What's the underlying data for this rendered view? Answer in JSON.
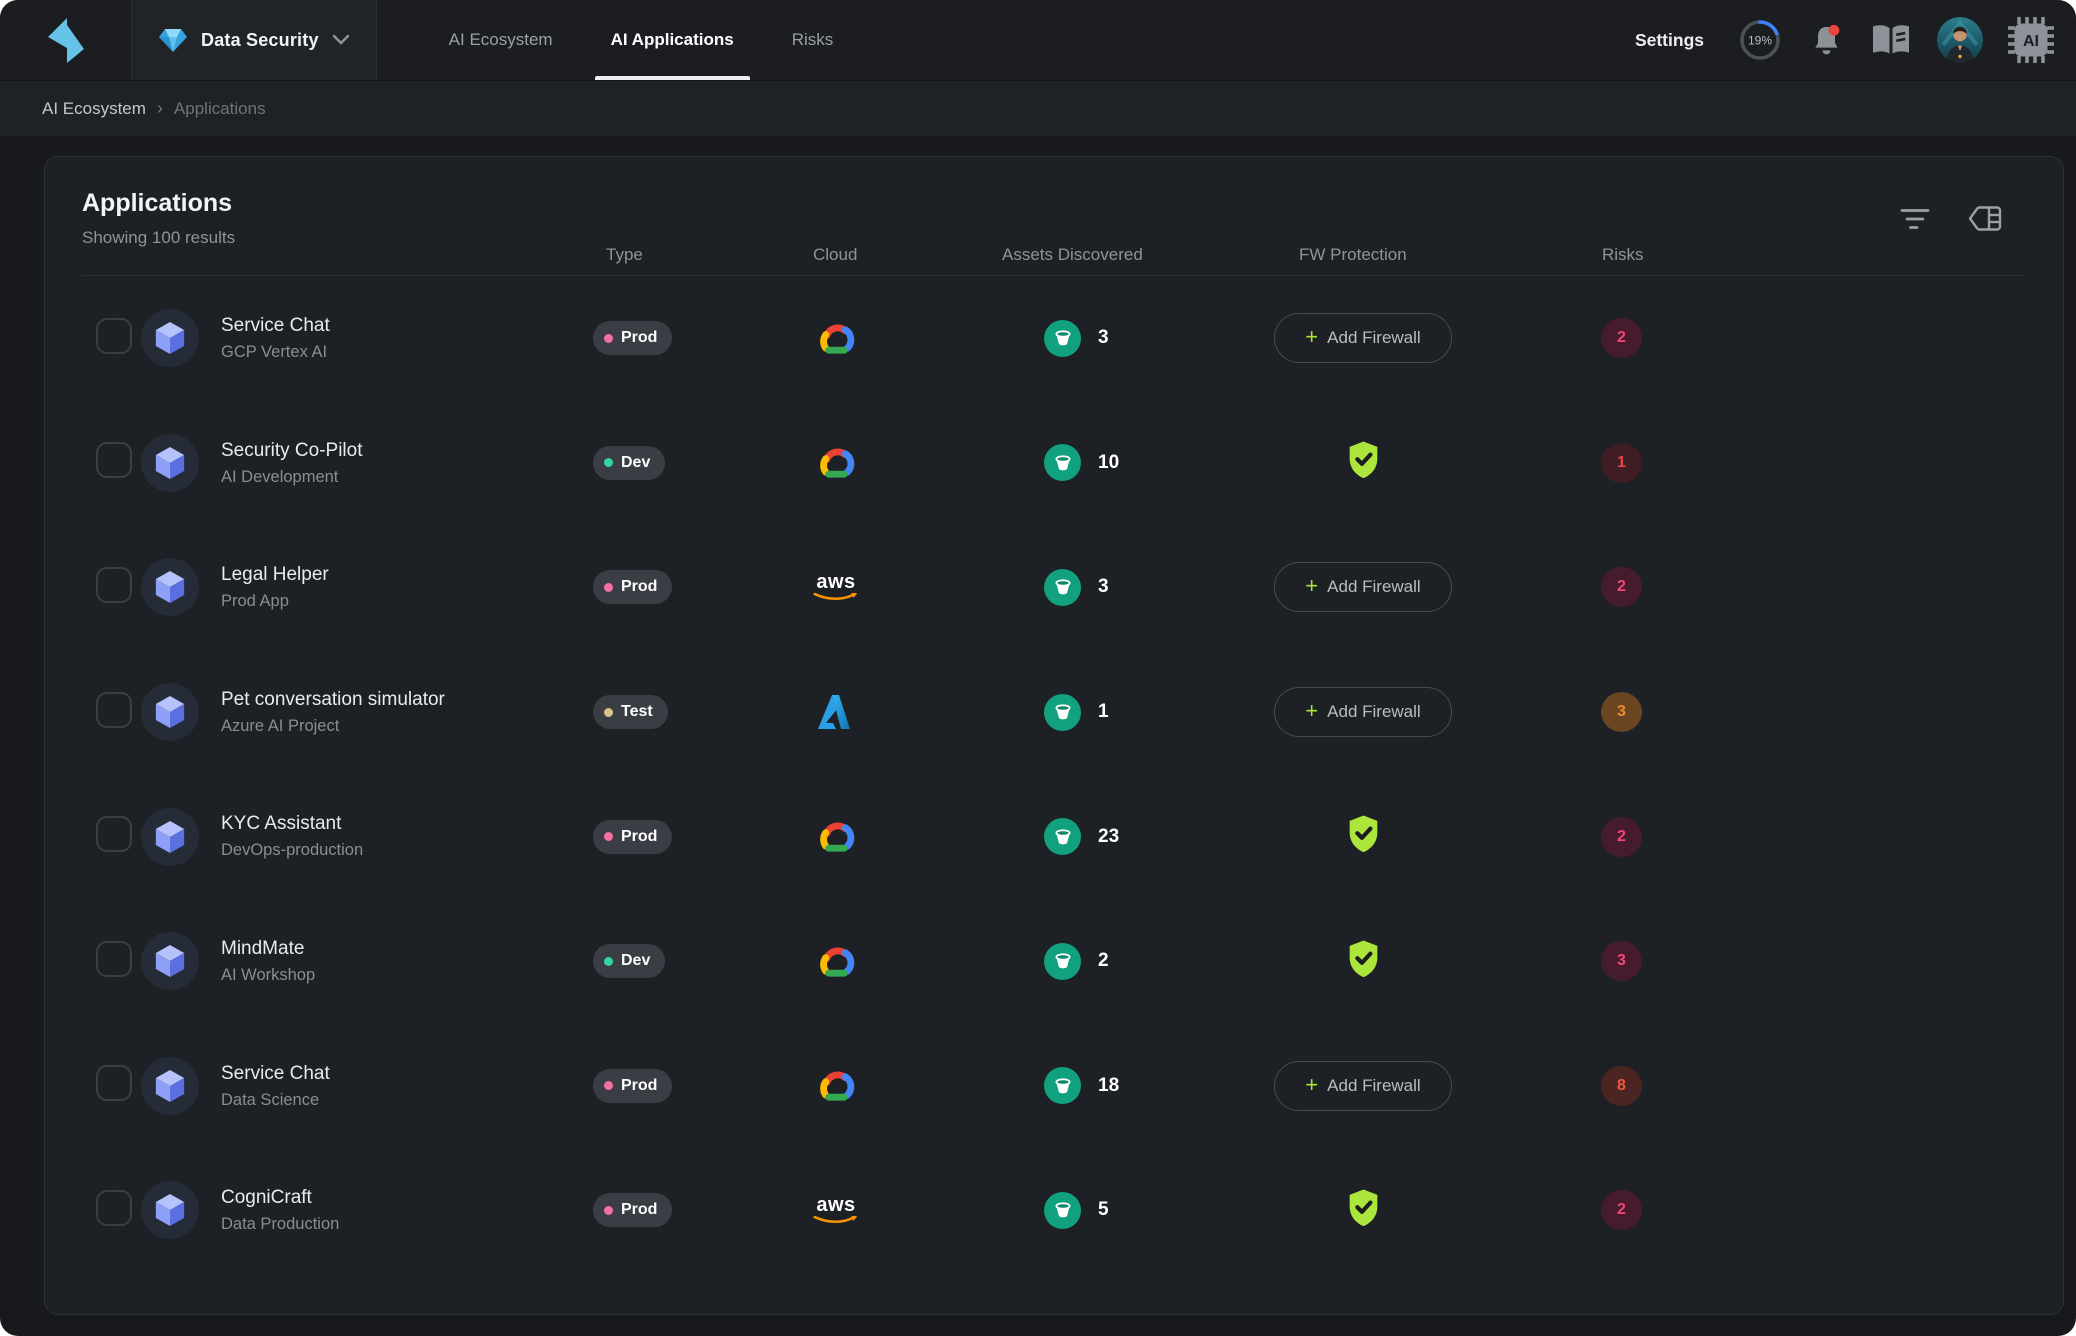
{
  "topbar": {
    "product": "Data Security",
    "tabs": [
      {
        "label": "AI Ecosystem",
        "active": false
      },
      {
        "label": "AI Applications",
        "active": true
      },
      {
        "label": "Risks",
        "active": false
      }
    ],
    "settings_label": "Settings",
    "scan_progress": "19%"
  },
  "breadcrumb": {
    "items": [
      "AI Ecosystem",
      "Applications"
    ],
    "separator": "›"
  },
  "card": {
    "title": "Applications",
    "results_summary": "Showing 100 results",
    "columns": [
      "Type",
      "Cloud",
      "Assets Discovered",
      "FW Protection",
      "Risks"
    ],
    "fw_button_plus": "+",
    "fw_button_label": "Add Firewall"
  },
  "rows": [
    {
      "name": "Service Chat",
      "subtitle": "GCP Vertex AI",
      "type": "Prod",
      "cloud": "GCP",
      "assets": "3",
      "fw_protected": false,
      "risks": "2",
      "risk_color": "pink"
    },
    {
      "name": "Security Co-Pilot",
      "subtitle": "AI Development",
      "type": "Dev",
      "cloud": "GCP",
      "assets": "10",
      "fw_protected": true,
      "risks": "1",
      "risk_color": "red"
    },
    {
      "name": "Legal Helper",
      "subtitle": "Prod App",
      "type": "Prod",
      "cloud": "AWS",
      "assets": "3",
      "fw_protected": false,
      "risks": "2",
      "risk_color": "pink"
    },
    {
      "name": "Pet conversation simulator",
      "subtitle": "Azure AI Project",
      "type": "Test",
      "cloud": "Azure",
      "assets": "1",
      "fw_protected": false,
      "risks": "3",
      "risk_color": "orange"
    },
    {
      "name": "KYC Assistant",
      "subtitle": "DevOps-production",
      "type": "Prod",
      "cloud": "GCP",
      "assets": "23",
      "fw_protected": true,
      "risks": "2",
      "risk_color": "pink"
    },
    {
      "name": "MindMate",
      "subtitle": "AI Workshop",
      "type": "Dev",
      "cloud": "GCP",
      "assets": "2",
      "fw_protected": true,
      "risks": "3",
      "risk_color": "pink"
    },
    {
      "name": "Service Chat",
      "subtitle": "Data Science",
      "type": "Prod",
      "cloud": "GCP",
      "assets": "18",
      "fw_protected": false,
      "risks": "8",
      "risk_color": "redorange"
    },
    {
      "name": "CogniCraft",
      "subtitle": "Data Production",
      "type": "Prod",
      "cloud": "AWS",
      "assets": "5",
      "fw_protected": true,
      "risks": "2",
      "risk_color": "pink"
    }
  ],
  "colors": {
    "brand_blue": "#66c2e6",
    "accent_blue": "#3c82f6",
    "lime_shield": "#ace63c",
    "teal_asset": "#12a17f",
    "notification_red": "#e8453c",
    "type_dots": {
      "Prod": "#f56fa4",
      "Dev": "#2fd7a4",
      "Test": "#d8c585"
    },
    "risk": {
      "pink": {
        "bg": "#461b2e",
        "fg": "#f64677"
      },
      "red": {
        "bg": "#3f1d22",
        "fg": "#e4464e"
      },
      "orange": {
        "bg": "#6a4522",
        "fg": "#ef8b2e"
      },
      "redorange": {
        "bg": "#4a2521",
        "fg": "#f2573f"
      }
    }
  }
}
